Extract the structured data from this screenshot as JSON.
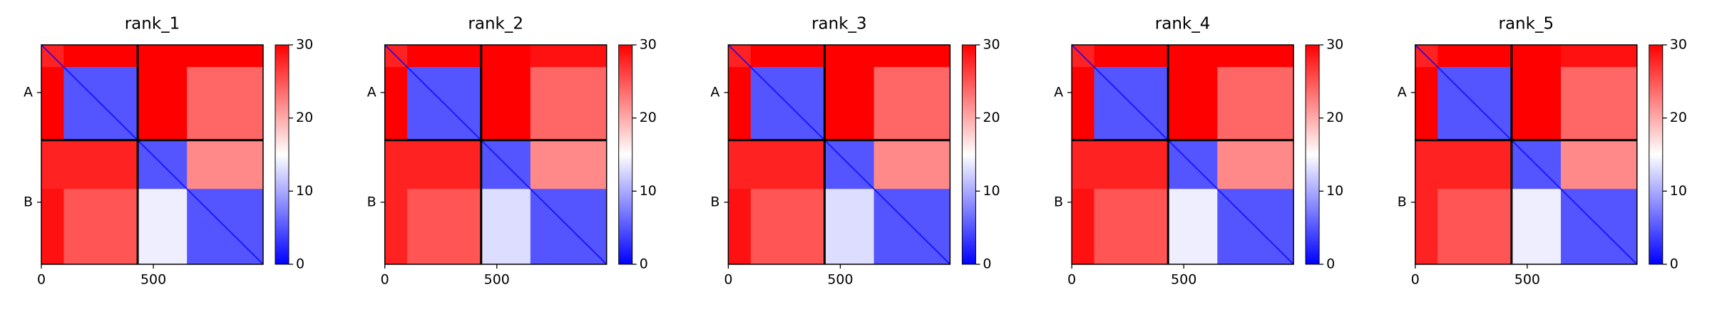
{
  "chart_data": [
    {
      "type": "heatmap",
      "title": "rank_1",
      "x_edges": [
        0,
        100,
        430,
        650,
        990
      ],
      "xlim": [
        0,
        990
      ],
      "ylim": [
        0,
        990
      ],
      "y_inverted": true,
      "xticks": [
        0,
        500
      ],
      "yticks": [
        {
          "value": 215,
          "label": "A"
        },
        {
          "value": 710,
          "label": "B"
        }
      ],
      "chain_breaks": [
        430
      ],
      "diagonal": 0,
      "z": [
        [
          28,
          30,
          30,
          30
        ],
        [
          30,
          5,
          30,
          24
        ],
        [
          28,
          28,
          5,
          22
        ],
        [
          29,
          25,
          14,
          5
        ]
      ],
      "clim": [
        0,
        30
      ],
      "cticks": [
        0,
        10,
        20,
        30
      ],
      "colormap": [
        "#0000ff",
        "#ffffff",
        "#ff0000"
      ]
    },
    {
      "type": "heatmap",
      "title": "rank_2",
      "x_edges": [
        0,
        100,
        430,
        650,
        990
      ],
      "xlim": [
        0,
        990
      ],
      "ylim": [
        0,
        990
      ],
      "y_inverted": true,
      "xticks": [
        0,
        500
      ],
      "yticks": [
        {
          "value": 215,
          "label": "A"
        },
        {
          "value": 710,
          "label": "B"
        }
      ],
      "chain_breaks": [
        430
      ],
      "diagonal": 0,
      "z": [
        [
          28,
          30,
          30,
          29
        ],
        [
          30,
          5,
          30,
          24
        ],
        [
          28,
          28,
          5,
          22
        ],
        [
          28,
          25,
          13,
          5
        ]
      ],
      "clim": [
        0,
        30
      ],
      "cticks": [
        0,
        10,
        20,
        30
      ],
      "colormap": [
        "#0000ff",
        "#ffffff",
        "#ff0000"
      ]
    },
    {
      "type": "heatmap",
      "title": "rank_3",
      "x_edges": [
        0,
        100,
        430,
        650,
        990
      ],
      "xlim": [
        0,
        990
      ],
      "ylim": [
        0,
        990
      ],
      "y_inverted": true,
      "xticks": [
        0,
        500
      ],
      "yticks": [
        {
          "value": 215,
          "label": "A"
        },
        {
          "value": 710,
          "label": "B"
        }
      ],
      "chain_breaks": [
        430
      ],
      "diagonal": 0,
      "z": [
        [
          28,
          30,
          30,
          30
        ],
        [
          30,
          5,
          30,
          24
        ],
        [
          28,
          28,
          5,
          22
        ],
        [
          29,
          25,
          13,
          5
        ]
      ],
      "clim": [
        0,
        30
      ],
      "cticks": [
        0,
        10,
        20,
        30
      ],
      "colormap": [
        "#0000ff",
        "#ffffff",
        "#ff0000"
      ]
    },
    {
      "type": "heatmap",
      "title": "rank_4",
      "x_edges": [
        0,
        100,
        430,
        650,
        990
      ],
      "xlim": [
        0,
        990
      ],
      "ylim": [
        0,
        990
      ],
      "y_inverted": true,
      "xticks": [
        0,
        500
      ],
      "yticks": [
        {
          "value": 215,
          "label": "A"
        },
        {
          "value": 710,
          "label": "B"
        }
      ],
      "chain_breaks": [
        430
      ],
      "diagonal": 0,
      "z": [
        [
          28,
          30,
          30,
          30
        ],
        [
          30,
          5,
          30,
          24
        ],
        [
          28,
          28,
          5,
          22
        ],
        [
          29,
          25,
          14,
          5
        ]
      ],
      "clim": [
        0,
        30
      ],
      "cticks": [
        0,
        10,
        20,
        30
      ],
      "colormap": [
        "#0000ff",
        "#ffffff",
        "#ff0000"
      ]
    },
    {
      "type": "heatmap",
      "title": "rank_5",
      "x_edges": [
        0,
        100,
        430,
        650,
        990
      ],
      "xlim": [
        0,
        990
      ],
      "ylim": [
        0,
        990
      ],
      "y_inverted": true,
      "xticks": [
        0,
        500
      ],
      "yticks": [
        {
          "value": 215,
          "label": "A"
        },
        {
          "value": 710,
          "label": "B"
        }
      ],
      "chain_breaks": [
        430
      ],
      "diagonal": 0,
      "z": [
        [
          28,
          30,
          30,
          29
        ],
        [
          30,
          5,
          30,
          24
        ],
        [
          28,
          28,
          5,
          22
        ],
        [
          28,
          25,
          14,
          5
        ]
      ],
      "clim": [
        0,
        30
      ],
      "cticks": [
        0,
        10,
        20,
        30
      ],
      "colormap": [
        "#0000ff",
        "#ffffff",
        "#ff0000"
      ]
    }
  ]
}
